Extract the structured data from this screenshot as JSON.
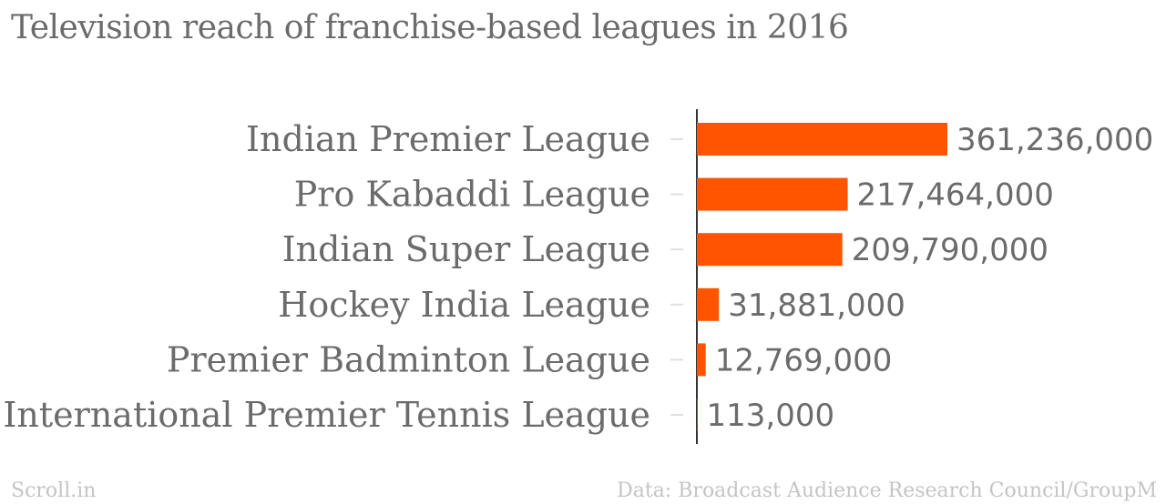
{
  "chart_data": {
    "type": "bar",
    "orientation": "horizontal",
    "title": "Television reach of franchise-based leagues in 2016",
    "categories": [
      "Indian Premier League",
      "Pro Kabaddi League",
      "Indian Super League",
      "Hockey India League",
      "Premier Badminton League",
      "International Premier Tennis League"
    ],
    "values": [
      361236000,
      217464000,
      209790000,
      31881000,
      12769000,
      113000
    ],
    "value_labels": [
      "361,236,000",
      "217,464,000",
      "209,790,000",
      "31,881,000",
      "12,769,000",
      "113,000"
    ],
    "bar_color": "#ff5500",
    "text_color": "#6b6b6b",
    "grid": false,
    "legend": "none"
  },
  "footer": {
    "source_site": "Scroll.in",
    "data_credit": "Data: Broadcast Audience Research Council/GroupM"
  }
}
